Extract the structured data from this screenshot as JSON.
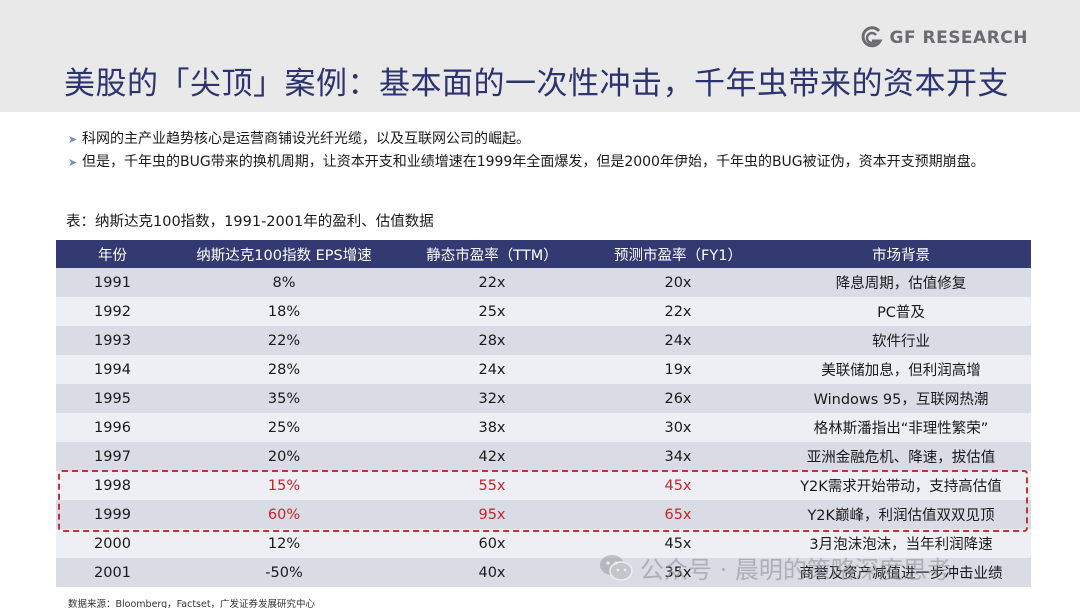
{
  "header": {
    "brand": "GF RESEARCH",
    "title": "美股的「尖顶」案例：基本面的一次性冲击，千年虫带来的资本开支"
  },
  "bullets": [
    "科网的主产业趋势核心是运营商铺设光纤光缆，以及互联网公司的崛起。",
    "但是，千年虫的BUG带来的换机周期，让资本开支和业绩增速在1999年全面爆发，但是2000年伊始，千年虫的BUG被证伪，资本开支预期崩盘。"
  ],
  "table": {
    "caption": "表：纳斯达克100指数，1991-2001年的盈利、估值数据",
    "headers": [
      "年份",
      "纳斯达克100指数 EPS增速",
      "静态市盈率（TTM）",
      "预测市盈率（FY1）",
      "市场背景"
    ],
    "rows": [
      [
        "1991",
        "8%",
        "22x",
        "20x",
        "降息周期，估值修复"
      ],
      [
        "1992",
        "18%",
        "25x",
        "22x",
        "PC普及"
      ],
      [
        "1993",
        "22%",
        "28x",
        "24x",
        "软件行业"
      ],
      [
        "1994",
        "28%",
        "24x",
        "19x",
        "美联储加息，但利润高增"
      ],
      [
        "1995",
        "35%",
        "32x",
        "26x",
        "Windows 95，互联网热潮"
      ],
      [
        "1996",
        "25%",
        "38x",
        "30x",
        "格林斯潘指出“非理性繁荣”"
      ],
      [
        "1997",
        "20%",
        "42x",
        "34x",
        "亚洲金融危机、降速，拔估值"
      ],
      [
        "1998",
        "15%",
        "55x",
        "45x",
        "Y2K需求开始带动，支持高估值"
      ],
      [
        "1999",
        "60%",
        "95x",
        "65x",
        "Y2K巅峰，利润估值双双见顶"
      ],
      [
        "2000",
        "12%",
        "60x",
        "45x",
        "3月泡沫泡沫，当年利润降速"
      ],
      [
        "2001",
        "-50%",
        "40x",
        "35x",
        "商誉及资产减值进一步冲击业绩"
      ]
    ]
  },
  "source": "数据来源：Bloomberg，Factset，广发证券发展研究中心",
  "watermark": "公众号 · 晨明的策略深度思考",
  "colors": {
    "header_band": "#e9e9ea",
    "title": "#2d3370",
    "table_header": "#333a71",
    "row_odd": "#d9dbe5",
    "row_even": "#eeeff4",
    "highlight_text": "#c9232b",
    "highlight_border": "#b83a33"
  },
  "icons": [
    "gf-logo-icon",
    "bullet-arrow-icon",
    "wechat-icon"
  ]
}
